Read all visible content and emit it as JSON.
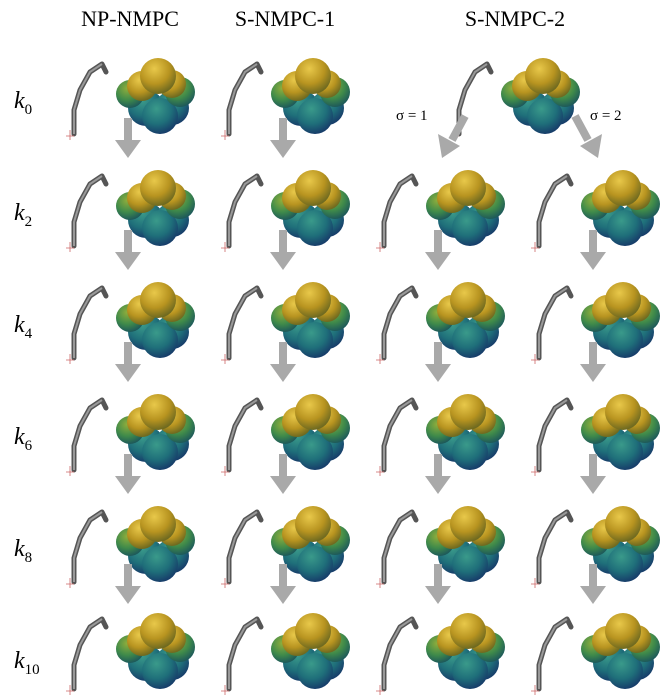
{
  "headers": [
    "NP-NMPC",
    "S-NMPC-1",
    "S-NMPC-2"
  ],
  "rows": [
    {
      "base": "k",
      "sub": "0"
    },
    {
      "base": "k",
      "sub": "2"
    },
    {
      "base": "k",
      "sub": "4"
    },
    {
      "base": "k",
      "sub": "6"
    },
    {
      "base": "k",
      "sub": "8"
    },
    {
      "base": "k",
      "sub": "10"
    }
  ],
  "sigma_labels": [
    "σ = 1",
    "σ = 2"
  ]
}
